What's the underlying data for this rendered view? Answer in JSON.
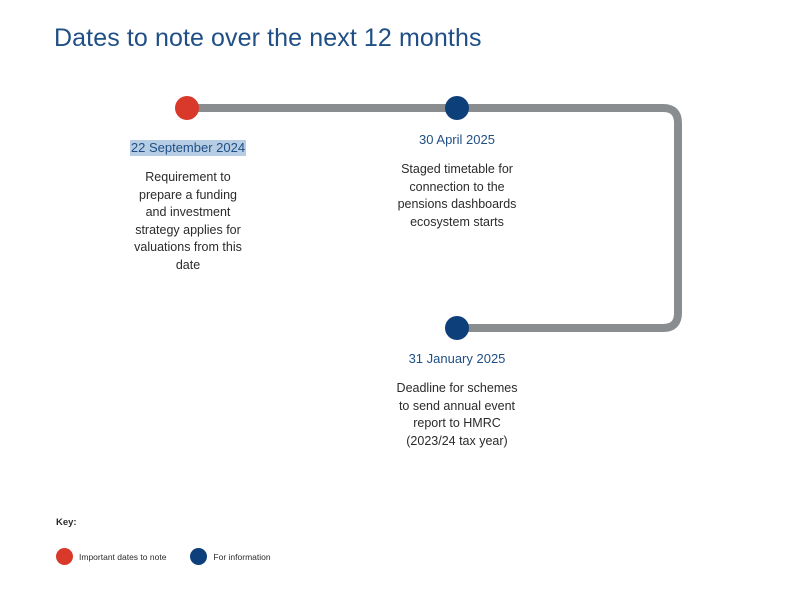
{
  "title": "Dates to note over the next 12 months",
  "colors": {
    "important": "#d9392b",
    "information": "#0d3f7a",
    "track": "#8a8d90",
    "title": "#1f4f86"
  },
  "events": [
    {
      "date": "22 September 2024",
      "type": "important",
      "description_lines": [
        "Requirement to",
        "prepare a funding",
        "and investment",
        "strategy applies for",
        "valuations from this",
        "date"
      ]
    },
    {
      "date": "30 April 2025",
      "type": "information",
      "description_lines": [
        "Staged timetable for",
        "connection to the",
        "pensions dashboards",
        "ecosystem starts"
      ]
    },
    {
      "date": "31 January 2025",
      "type": "information",
      "description_lines": [
        "Deadline for schemes",
        "to send annual event",
        "report to HMRC",
        "(2023/24 tax year)"
      ]
    }
  ],
  "legend": {
    "title": "Key:",
    "items": [
      {
        "label": "Important dates to note",
        "type": "important"
      },
      {
        "label": "For information",
        "type": "information"
      }
    ]
  }
}
